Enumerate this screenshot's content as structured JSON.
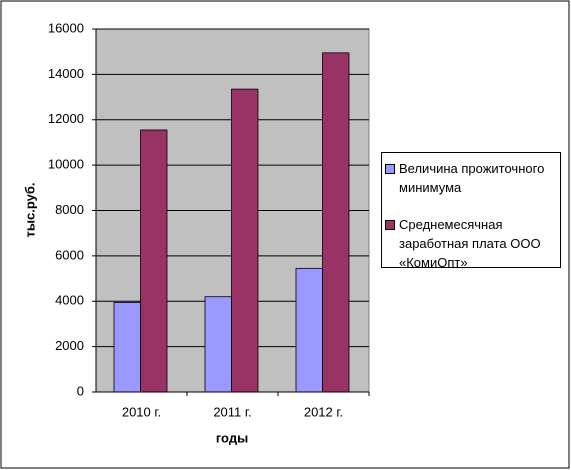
{
  "chart_data": {
    "type": "bar",
    "x_label": "годы",
    "y_label": "тыс.руб.",
    "categories": [
      "2010 г.",
      "2011 г.",
      "2012 г."
    ],
    "series": [
      {
        "name": "Величина прожиточного минимума",
        "color": "#9999ff",
        "values": [
          3950,
          4200,
          5450
        ]
      },
      {
        "name": "Среднемесячная заработная плата ООО «КомиОпт»",
        "color": "#993366",
        "values": [
          11550,
          13350,
          14950
        ]
      }
    ],
    "ylim": [
      0,
      16000
    ],
    "yticks": [
      0,
      2000,
      4000,
      6000,
      8000,
      10000,
      12000,
      14000,
      16000
    ],
    "grid": true,
    "legend": "right"
  }
}
